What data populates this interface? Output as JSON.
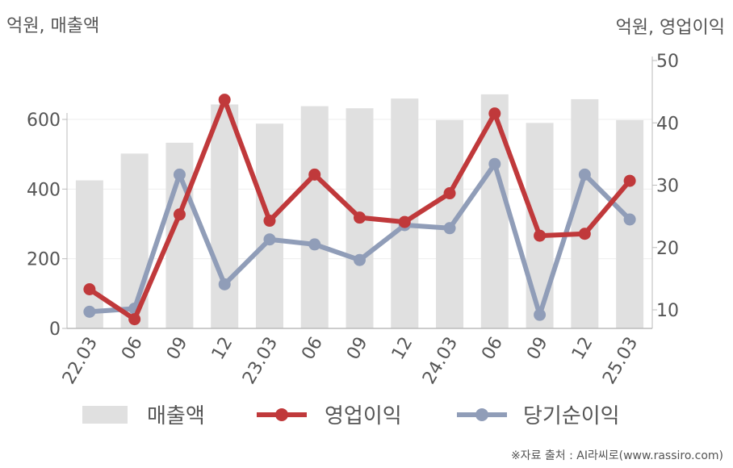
{
  "unit_left": "억원, 매출액",
  "unit_right": "억원, 영업이익",
  "source": "※자료 출처 : AI라씨로(www.rassiro.com)",
  "colors": {
    "revenue": "#e0e0e0",
    "operating_profit": "#c0393b",
    "net_income": "#909db8",
    "axis": "#bbbbbb",
    "grid": "#eeeeee",
    "text": "#555555"
  },
  "chart_data": {
    "type": "bar",
    "categories": [
      "22.03",
      "06",
      "09",
      "12",
      "23.03",
      "06",
      "09",
      "12",
      "24.03",
      "06",
      "09",
      "12",
      "25.03"
    ],
    "series": [
      {
        "name": "매출액",
        "type": "bar",
        "axis": "left",
        "values": [
          425,
          502,
          533,
          643,
          588,
          638,
          632,
          660,
          598,
          672,
          590,
          658,
          598
        ]
      },
      {
        "name": "영업이익",
        "type": "line",
        "axis": "right",
        "values": [
          13.3,
          8.5,
          25.3,
          43.7,
          24.3,
          31.7,
          24.8,
          24.1,
          28.7,
          41.5,
          21.9,
          22.2,
          30.7
        ]
      },
      {
        "name": "당기순이익",
        "type": "line",
        "axis": "right",
        "values": [
          9.7,
          10.2,
          31.7,
          14.1,
          21.3,
          20.5,
          18.0,
          23.6,
          23.1,
          33.4,
          9.2,
          31.7,
          24.5
        ]
      }
    ],
    "left_axis": {
      "ticks": [
        0,
        200,
        400,
        600
      ],
      "range": [
        0,
        745
      ]
    },
    "right_axis": {
      "ticks": [
        10,
        20,
        30,
        40,
        50
      ],
      "range": [
        7.3,
        50
      ]
    },
    "legend": {
      "position": "bottom",
      "items": [
        "매출액",
        "영업이익",
        "당기순이익"
      ]
    },
    "grid": true
  }
}
